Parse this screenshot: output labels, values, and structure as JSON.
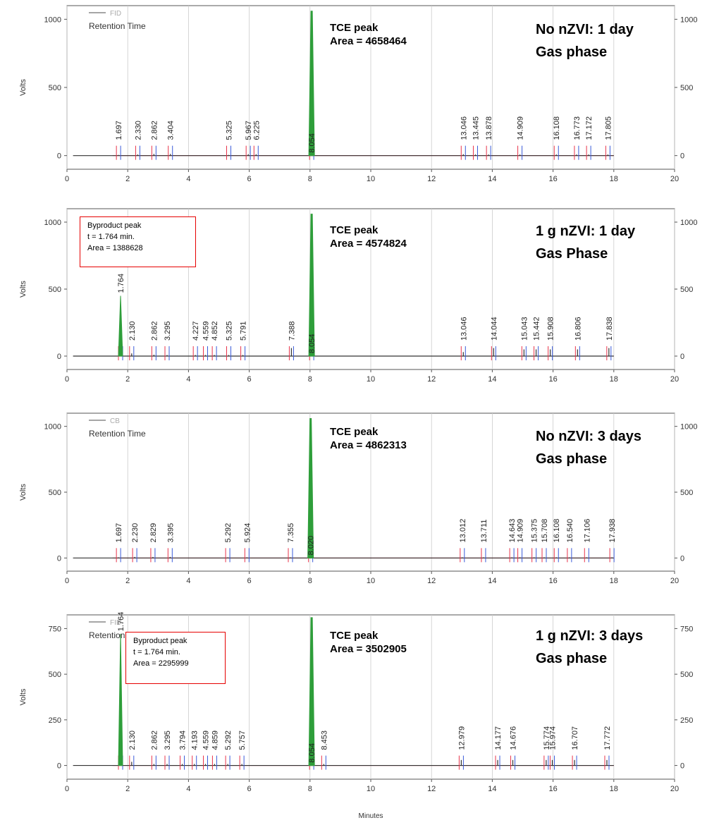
{
  "colors": {
    "trace": "#333333",
    "tce_peak": "#2e9e3a",
    "marker_red": "#e8334a",
    "marker_blue": "#3a5bd9",
    "box": "#e60000",
    "grid": "#cccccc"
  },
  "x_axis_label": "Minutes",
  "chart_data": [
    {
      "type": "line",
      "legend": "FID",
      "legend_title": "Retention Time",
      "xlim": [
        0,
        20
      ],
      "xticks": [
        0,
        2,
        4,
        6,
        8,
        10,
        12,
        14,
        16,
        18,
        20
      ],
      "ylabel": "Volts",
      "ylim": [
        -100,
        1100
      ],
      "yticks": [
        0,
        500,
        1000
      ],
      "tce_label": "TCE peak",
      "tce_area": "Area = 4658464",
      "condition": [
        "No nZVI: 1 day",
        "Gas phase"
      ],
      "peaks": [
        {
          "t": 1.697,
          "h": 5,
          "label": "1.697"
        },
        {
          "t": 2.33,
          "h": 8,
          "label": "2.330"
        },
        {
          "t": 2.862,
          "h": 12,
          "label": "2.862"
        },
        {
          "t": 3.404,
          "h": 12,
          "label": "3.404"
        },
        {
          "t": 5.325,
          "h": 5,
          "label": "5.325"
        },
        {
          "t": 5.967,
          "h": 10,
          "label": "5.967"
        },
        {
          "t": 6.225,
          "h": 10,
          "label": "6.225"
        },
        {
          "t": 8.054,
          "h": 1060,
          "label": "8.054"
        },
        {
          "t": 13.046,
          "h": 10,
          "label": "13.046"
        },
        {
          "t": 13.445,
          "h": 8,
          "label": "13.445"
        },
        {
          "t": 13.878,
          "h": 8,
          "label": "13.878"
        },
        {
          "t": 14.909,
          "h": 8,
          "label": "14.909"
        },
        {
          "t": 16.108,
          "h": 8,
          "label": "16.108"
        },
        {
          "t": 16.773,
          "h": 8,
          "label": "16.773"
        },
        {
          "t": 17.172,
          "h": 8,
          "label": "17.172"
        },
        {
          "t": 17.805,
          "h": 8,
          "label": "17.805"
        }
      ]
    },
    {
      "type": "line",
      "legend": "",
      "legend_title": "",
      "xlim": [
        0,
        20
      ],
      "xticks": [
        0,
        2,
        4,
        6,
        8,
        10,
        12,
        14,
        16,
        18,
        20
      ],
      "ylabel": "Volts",
      "ylim": [
        -100,
        1100
      ],
      "yticks": [
        0,
        500,
        1000
      ],
      "tce_label": "TCE peak",
      "tce_area": "Area = 4574824",
      "condition": [
        "1 g nZVI: 1 day",
        "Gas Phase"
      ],
      "byproduct": [
        "Byproduct peak",
        "t = 1.764 min.",
        "Area = 1388628"
      ],
      "peaks": [
        {
          "t": 1.764,
          "h": 450,
          "label": "1.764"
        },
        {
          "t": 2.13,
          "h": 20,
          "label": "2.130"
        },
        {
          "t": 2.862,
          "h": 10,
          "label": "2.862"
        },
        {
          "t": 3.295,
          "h": 8,
          "label": "3.295"
        },
        {
          "t": 4.227,
          "h": 8,
          "label": "4.227"
        },
        {
          "t": 4.559,
          "h": 8,
          "label": "4.559"
        },
        {
          "t": 4.852,
          "h": 8,
          "label": "4.852"
        },
        {
          "t": 5.325,
          "h": 8,
          "label": "5.325"
        },
        {
          "t": 5.791,
          "h": 8,
          "label": "5.791"
        },
        {
          "t": 7.388,
          "h": 60,
          "label": "7.388"
        },
        {
          "t": 8.054,
          "h": 1060,
          "label": "8.054"
        },
        {
          "t": 13.046,
          "h": 30,
          "label": "13.046"
        },
        {
          "t": 14.044,
          "h": 60,
          "label": "14.044"
        },
        {
          "t": 15.043,
          "h": 50,
          "label": "15.043"
        },
        {
          "t": 15.442,
          "h": 50,
          "label": "15.442"
        },
        {
          "t": 15.908,
          "h": 50,
          "label": "15.908"
        },
        {
          "t": 16.806,
          "h": 50,
          "label": "16.806"
        },
        {
          "t": 17.838,
          "h": 60,
          "label": "17.838"
        }
      ]
    },
    {
      "type": "line",
      "legend": "CB",
      "legend_title": "Retention Time",
      "xlim": [
        0,
        20
      ],
      "xticks": [
        0,
        2,
        4,
        6,
        8,
        10,
        12,
        14,
        16,
        18,
        20
      ],
      "ylabel": "Volts",
      "ylim": [
        -100,
        1100
      ],
      "yticks": [
        0,
        500,
        1000
      ],
      "tce_label": "TCE peak",
      "tce_area": "Area = 4862313",
      "condition": [
        "No nZVI: 3 days",
        "Gas phase"
      ],
      "peaks": [
        {
          "t": 1.697,
          "h": 5,
          "label": "1.697"
        },
        {
          "t": 2.23,
          "h": 8,
          "label": "2.230"
        },
        {
          "t": 2.829,
          "h": 8,
          "label": "2.829"
        },
        {
          "t": 3.395,
          "h": 8,
          "label": "3.395"
        },
        {
          "t": 5.292,
          "h": 5,
          "label": "5.292"
        },
        {
          "t": 5.924,
          "h": 5,
          "label": "5.924"
        },
        {
          "t": 7.355,
          "h": 5,
          "label": "7.355"
        },
        {
          "t": 8.02,
          "h": 1060,
          "label": "8.020"
        },
        {
          "t": 13.012,
          "h": 5,
          "label": "13.012"
        },
        {
          "t": 13.711,
          "h": 5,
          "label": "13.711"
        },
        {
          "t": 14.643,
          "h": 5,
          "label": "14.643"
        },
        {
          "t": 14.909,
          "h": 5,
          "label": "14.909"
        },
        {
          "t": 15.375,
          "h": 5,
          "label": "15.375"
        },
        {
          "t": 15.708,
          "h": 5,
          "label": "15.708"
        },
        {
          "t": 16.108,
          "h": 5,
          "label": "16.108"
        },
        {
          "t": 16.54,
          "h": 5,
          "label": "16.540"
        },
        {
          "t": 17.106,
          "h": 5,
          "label": "17.106"
        },
        {
          "t": 17.938,
          "h": 5,
          "label": "17.938"
        }
      ]
    },
    {
      "type": "line",
      "legend": "FID",
      "legend_title": "Retention Time",
      "xlim": [
        0,
        20
      ],
      "xticks": [
        0,
        2,
        4,
        6,
        8,
        10,
        12,
        14,
        16,
        18,
        20
      ],
      "ylabel": "Volts",
      "ylim": [
        -75,
        825
      ],
      "yticks": [
        0,
        250,
        500,
        750
      ],
      "tce_label": "TCE peak",
      "tce_area": "Area = 3502905",
      "condition": [
        "1 g nZVI: 3 days",
        "Gas phase"
      ],
      "byproduct": [
        "Byproduct peak",
        "t = 1.764 min.",
        "Area = 2295999"
      ],
      "peaks": [
        {
          "t": 1.764,
          "h": 720,
          "label": "1.764"
        },
        {
          "t": 2.13,
          "h": 20,
          "label": "2.130"
        },
        {
          "t": 2.862,
          "h": 8,
          "label": "2.862"
        },
        {
          "t": 3.295,
          "h": 8,
          "label": "3.295"
        },
        {
          "t": 3.794,
          "h": 8,
          "label": "3.794"
        },
        {
          "t": 4.193,
          "h": 8,
          "label": "4.193"
        },
        {
          "t": 4.559,
          "h": 8,
          "label": "4.559"
        },
        {
          "t": 4.859,
          "h": 8,
          "label": "4.859"
        },
        {
          "t": 5.292,
          "h": 8,
          "label": "5.292"
        },
        {
          "t": 5.757,
          "h": 8,
          "label": "5.757"
        },
        {
          "t": 8.054,
          "h": 810,
          "label": "8.054"
        },
        {
          "t": 8.453,
          "h": 8,
          "label": "8.453"
        },
        {
          "t": 12.979,
          "h": 30,
          "label": "12.979"
        },
        {
          "t": 14.177,
          "h": 30,
          "label": "14.177"
        },
        {
          "t": 14.676,
          "h": 30,
          "label": "14.676"
        },
        {
          "t": 15.774,
          "h": 30,
          "label": "15.774"
        },
        {
          "t": 15.974,
          "h": 30,
          "label": "15.974"
        },
        {
          "t": 16.707,
          "h": 30,
          "label": "16.707"
        },
        {
          "t": 17.772,
          "h": 30,
          "label": "17.772"
        }
      ]
    }
  ]
}
